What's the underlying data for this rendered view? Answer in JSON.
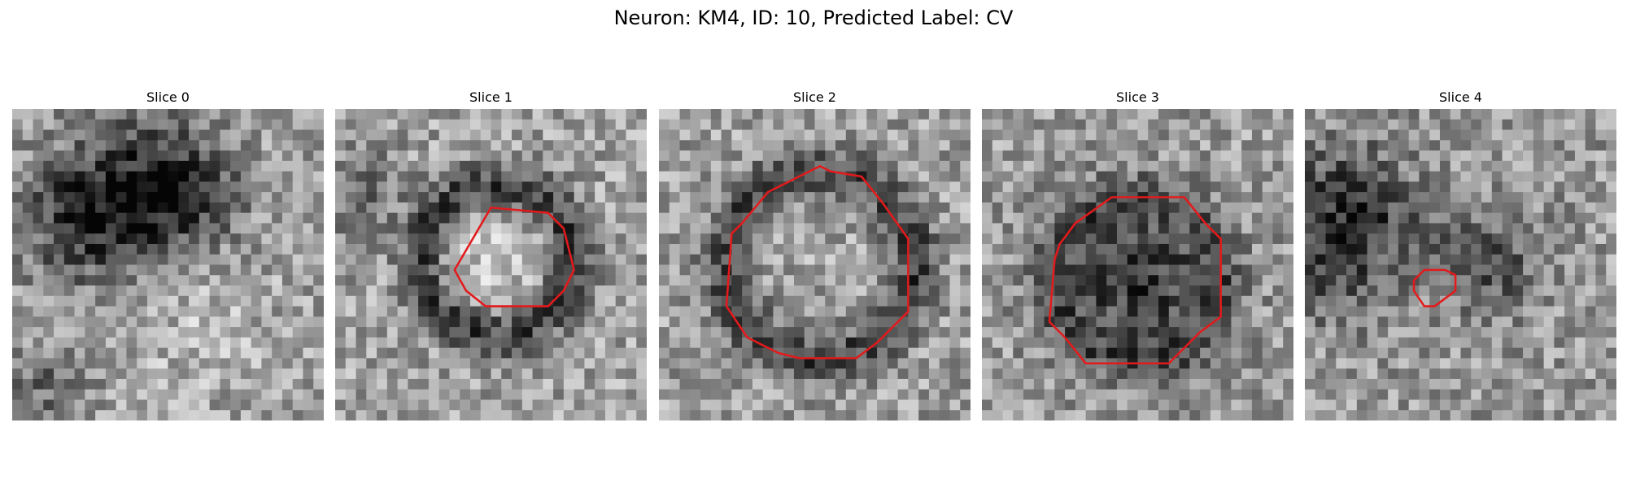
{
  "figure": {
    "title": "Neuron: KM4, ID: 10, Predicted Label: CV",
    "contour_color": "#e31a1c",
    "colormap": "grayscale",
    "grid_size": 30,
    "panels": [
      {
        "label": "Slice 0",
        "contour": null,
        "darkness": "diffuse dark band across upper area"
      },
      {
        "label": "Slice 1",
        "contour": [
          [
            11.5,
            15.5,
            12.6,
            17.5,
            14.5,
            19.0,
            20.5,
            19.0,
            22.0,
            17.5,
            23.0,
            15.5,
            22.0,
            11.5,
            20.5,
            10.0,
            15.0,
            9.5
          ]
        ],
        "darkness": "dark ring around bright center"
      },
      {
        "label": "Slice 2",
        "contour": [
          [
            7.0,
            12.0,
            6.5,
            19.0,
            8.5,
            22.0,
            11.5,
            23.5,
            13.5,
            24.0,
            19.0,
            24.0,
            21.0,
            22.5,
            24.0,
            19.5,
            24.0,
            12.5,
            21.5,
            9.0,
            19.5,
            6.5,
            16.5,
            6.0,
            15.5,
            5.5,
            13.5,
            6.5,
            10.5,
            8.0,
            8.0,
            11.0
          ]
        ],
        "darkness": "dark ring"
      },
      {
        "label": "Slice 3",
        "contour": [
          [
            7.0,
            14.5,
            6.5,
            20.5,
            8.0,
            22.0,
            10.0,
            24.5,
            18.0,
            24.5,
            19.5,
            23.0,
            21.0,
            21.5,
            23.0,
            20.0,
            23.0,
            12.5,
            21.5,
            11.0,
            19.5,
            8.5,
            12.5,
            8.5,
            9.0,
            11.0,
            7.5,
            13.0
          ]
        ],
        "darkness": "dark filled disc"
      },
      {
        "label": "Slice 4",
        "contour": [
          [
            10.5,
            17.5,
            11.5,
            19.0,
            12.5,
            19.0,
            14.5,
            17.5,
            14.5,
            16.0,
            13.5,
            15.5,
            11.5,
            15.5,
            10.5,
            16.5
          ]
        ],
        "darkness": "dark blob upper-left"
      }
    ]
  }
}
